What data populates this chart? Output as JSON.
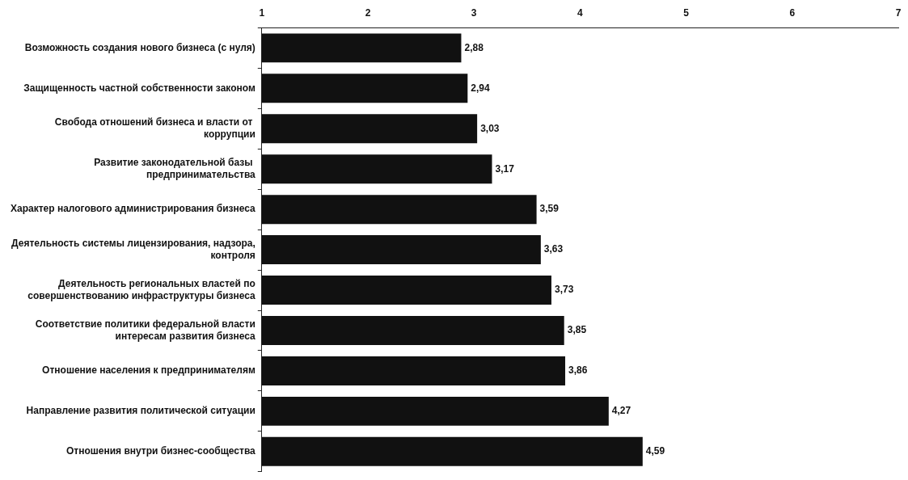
{
  "chart_data": {
    "type": "bar",
    "orientation": "horizontal",
    "categories": [
      "Возможность создания нового бизнеса (с нуля)",
      "Защищенность частной собственности законом",
      "Свобода отношений бизнеса и власти от  коррупции",
      "Развитие законодательной базы  предпринимательства",
      "Характер налогового администрирования бизнеса",
      "Деятельность системы лицензирования, надзора, контроля",
      "Деятельность региональных властей по совершенствованию инфраструктуры бизнеса",
      "Соответствие политики федеральной власти интересам развития бизнеса",
      "Отношение населения к предпринимателям",
      "Направление развития политической ситуации",
      "Отношения внутри бизнес-сообщества"
    ],
    "values": [
      2.88,
      2.94,
      3.03,
      3.17,
      3.59,
      3.63,
      3.73,
      3.85,
      3.86,
      4.27,
      4.59
    ],
    "value_labels": [
      "2,88",
      "2,94",
      "3,03",
      "3,17",
      "3,59",
      "3,63",
      "3,73",
      "3,85",
      "3,86",
      "4,27",
      "4,59"
    ],
    "color": "#111111",
    "xlim": [
      1,
      7
    ],
    "xticks": [
      1,
      2,
      3,
      4,
      5,
      6,
      7
    ],
    "grid": false
  }
}
